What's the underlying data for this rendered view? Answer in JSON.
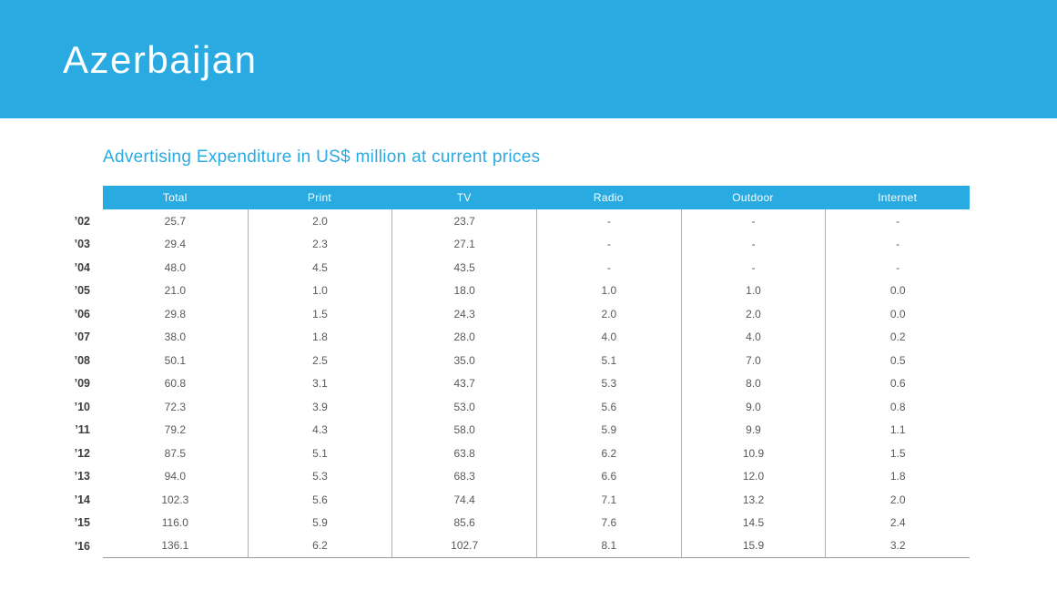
{
  "header": {
    "title": "Azerbaijan"
  },
  "colors": {
    "accent": "#29ABE2",
    "header_text": "#FFFFFF",
    "body_text": "#58595B",
    "year_label_text": "#3D3D3D",
    "divider": "#B0B0B0",
    "bottom_border": "#9B9B9B"
  },
  "chart_data": {
    "type": "table",
    "title": "Advertising Expenditure in US$ million at current prices",
    "columns": [
      "Total",
      "Print",
      "TV",
      "Radio",
      "Outdoor",
      "Internet"
    ],
    "rows": [
      {
        "year": "’02",
        "values": [
          "25.7",
          "2.0",
          "23.7",
          "-",
          "-",
          "-"
        ]
      },
      {
        "year": "’03",
        "values": [
          "29.4",
          "2.3",
          "27.1",
          "-",
          "-",
          "-"
        ]
      },
      {
        "year": "’04",
        "values": [
          "48.0",
          "4.5",
          "43.5",
          "-",
          "-",
          "-"
        ]
      },
      {
        "year": "’05",
        "values": [
          "21.0",
          "1.0",
          "18.0",
          "1.0",
          "1.0",
          "0.0"
        ]
      },
      {
        "year": "’06",
        "values": [
          "29.8",
          "1.5",
          "24.3",
          "2.0",
          "2.0",
          "0.0"
        ]
      },
      {
        "year": "’07",
        "values": [
          "38.0",
          "1.8",
          "28.0",
          "4.0",
          "4.0",
          "0.2"
        ]
      },
      {
        "year": "’08",
        "values": [
          "50.1",
          "2.5",
          "35.0",
          "5.1",
          "7.0",
          "0.5"
        ]
      },
      {
        "year": "’09",
        "values": [
          "60.8",
          "3.1",
          "43.7",
          "5.3",
          "8.0",
          "0.6"
        ]
      },
      {
        "year": "’10",
        "values": [
          "72.3",
          "3.9",
          "53.0",
          "5.6",
          "9.0",
          "0.8"
        ]
      },
      {
        "year": "’11",
        "values": [
          "79.2",
          "4.3",
          "58.0",
          "5.9",
          "9.9",
          "1.1"
        ]
      },
      {
        "year": "’12",
        "values": [
          "87.5",
          "5.1",
          "63.8",
          "6.2",
          "10.9",
          "1.5"
        ]
      },
      {
        "year": "’13",
        "values": [
          "94.0",
          "5.3",
          "68.3",
          "6.6",
          "12.0",
          "1.8"
        ]
      },
      {
        "year": "’14",
        "values": [
          "102.3",
          "5.6",
          "74.4",
          "7.1",
          "13.2",
          "2.0"
        ]
      },
      {
        "year": "’15",
        "values": [
          "116.0",
          "5.9",
          "85.6",
          "7.6",
          "14.5",
          "2.4"
        ]
      },
      {
        "year": "'16",
        "values": [
          "136.1",
          "6.2",
          "102.7",
          "8.1",
          "15.9",
          "3.2"
        ]
      }
    ]
  }
}
